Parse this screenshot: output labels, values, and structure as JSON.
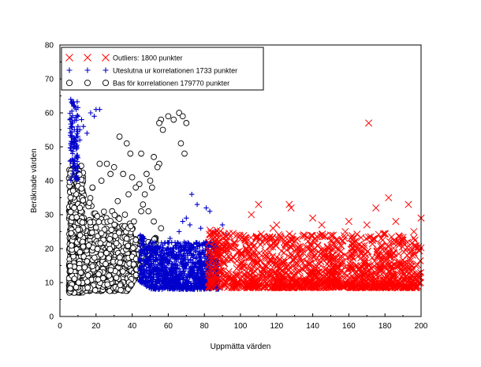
{
  "chart_data": {
    "type": "scatter",
    "title": "",
    "xlabel": "Uppmätta värden",
    "ylabel": "Beräknade värden",
    "xlim": [
      0,
      200
    ],
    "ylim": [
      0,
      80
    ],
    "xticks": [
      0,
      20,
      40,
      60,
      80,
      100,
      120,
      140,
      160,
      180,
      200
    ],
    "yticks": [
      0,
      10,
      20,
      30,
      40,
      50,
      60,
      70,
      80
    ],
    "grid": false,
    "legend_position": "top-left",
    "series": [
      {
        "name": "Outliers: 1800 punkter",
        "marker": "x",
        "color": "#ff0000",
        "region": {
          "x": [
            82,
            200
          ],
          "y": [
            8,
            28
          ],
          "count": 1400
        },
        "points": [
          [
            171,
            57
          ],
          [
            110,
            33
          ],
          [
            127,
            33
          ],
          [
            175,
            32
          ],
          [
            182,
            35
          ],
          [
            193,
            33
          ],
          [
            200,
            29
          ],
          [
            106,
            30
          ],
          [
            128,
            32
          ],
          [
            140,
            29
          ],
          [
            145,
            27
          ],
          [
            158,
            25
          ],
          [
            163,
            22
          ],
          [
            170,
            27
          ],
          [
            186,
            28
          ],
          [
            196,
            25
          ],
          [
            150,
            24
          ],
          [
            135,
            24
          ],
          [
            118,
            26
          ],
          [
            98,
            24
          ],
          [
            92,
            21
          ],
          [
            102,
            23
          ],
          [
            112,
            22
          ],
          [
            125,
            21
          ],
          [
            188,
            22
          ],
          [
            194,
            19
          ],
          [
            160,
            28
          ],
          [
            120,
            27
          ],
          [
            178,
            23
          ],
          [
            154,
            22
          ]
        ]
      },
      {
        "name": "Uteslutna ur korrelationen 1733 punkter",
        "marker": "+",
        "color": "#0000cc",
        "region": {
          "x": [
            45,
            92
          ],
          "y": [
            8,
            24
          ],
          "count": 1200
        },
        "points": [
          [
            6,
            64
          ],
          [
            7,
            63
          ],
          [
            8,
            62
          ],
          [
            9,
            61
          ],
          [
            10,
            59
          ],
          [
            7,
            57
          ],
          [
            8,
            55
          ],
          [
            9,
            53
          ],
          [
            6,
            51
          ],
          [
            8,
            50
          ],
          [
            7,
            48
          ],
          [
            9,
            47
          ],
          [
            6,
            46
          ],
          [
            8,
            45
          ],
          [
            10,
            56
          ],
          [
            11,
            55
          ],
          [
            12,
            58
          ],
          [
            13,
            56
          ],
          [
            15,
            54
          ],
          [
            17,
            60
          ],
          [
            19,
            59
          ],
          [
            20,
            61
          ],
          [
            22,
            61
          ],
          [
            11,
            52
          ],
          [
            9,
            50
          ],
          [
            7,
            44
          ],
          [
            73,
            36
          ],
          [
            76,
            33
          ],
          [
            81,
            32
          ],
          [
            83,
            31
          ],
          [
            70,
            29
          ],
          [
            68,
            28
          ],
          [
            90,
            27
          ],
          [
            86,
            25
          ],
          [
            92,
            24
          ],
          [
            78,
            26
          ],
          [
            66,
            25
          ],
          [
            72,
            27
          ],
          [
            61,
            23
          ],
          [
            57,
            21
          ]
        ]
      },
      {
        "name": "Bas för korrelationen 179770 punkter",
        "marker": "o",
        "color": "#000000",
        "region": {
          "x": [
            5,
            55
          ],
          "y": [
            7,
            45
          ],
          "count": 1600
        },
        "points": [
          [
            66,
            60
          ],
          [
            68,
            59
          ],
          [
            60,
            59
          ],
          [
            63,
            58
          ],
          [
            70,
            57
          ],
          [
            56,
            58
          ],
          [
            55,
            57
          ],
          [
            57,
            55
          ],
          [
            67,
            51
          ],
          [
            69,
            48
          ],
          [
            33,
            53
          ],
          [
            37,
            51
          ],
          [
            39,
            48
          ],
          [
            45,
            48
          ],
          [
            52,
            47
          ],
          [
            55,
            45
          ],
          [
            54,
            44
          ],
          [
            48,
            42
          ],
          [
            50,
            40
          ],
          [
            51,
            38
          ],
          [
            44,
            39
          ],
          [
            30,
            44
          ],
          [
            26,
            45
          ],
          [
            22,
            45
          ],
          [
            23,
            40
          ],
          [
            28,
            42
          ],
          [
            35,
            42
          ],
          [
            40,
            41
          ],
          [
            42,
            38
          ],
          [
            38,
            36
          ],
          [
            47,
            36
          ],
          [
            49,
            31
          ],
          [
            45,
            31
          ],
          [
            52,
            28
          ],
          [
            56,
            26
          ],
          [
            46,
            33
          ],
          [
            32,
            34
          ],
          [
            36,
            30
          ],
          [
            41,
            28
          ],
          [
            18,
            38
          ]
        ]
      }
    ]
  }
}
